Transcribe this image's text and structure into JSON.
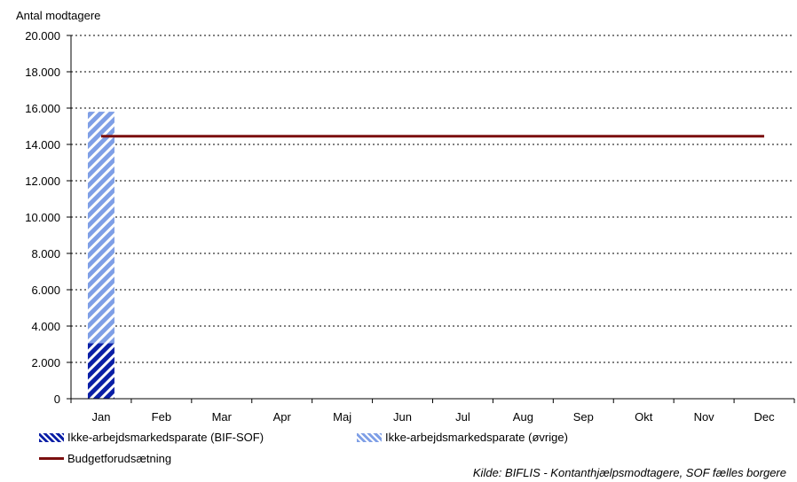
{
  "chart_data": {
    "type": "bar",
    "stacked": true,
    "ylabel": "Antal modtagere",
    "ylim": [
      0,
      20000
    ],
    "ytick_step": 2000,
    "categories": [
      "Jan",
      "Feb",
      "Mar",
      "Apr",
      "Maj",
      "Jun",
      "Jul",
      "Aug",
      "Sep",
      "Okt",
      "Nov",
      "Dec"
    ],
    "series": [
      {
        "name": "Ikke-arbejdsmarkedsparate (BIF-SOF)",
        "color": "#0b1fa6",
        "values": [
          3050,
          null,
          null,
          null,
          null,
          null,
          null,
          null,
          null,
          null,
          null,
          null
        ]
      },
      {
        "name": "Ikke-arbejdsmarkedsparate (øvrige)",
        "color": "#7f9fe6",
        "values": [
          12750,
          null,
          null,
          null,
          null,
          null,
          null,
          null,
          null,
          null,
          null,
          null
        ]
      }
    ],
    "line": {
      "name": "Budgetforudsætning",
      "color": "#7b0f0f",
      "values": [
        14450,
        14450,
        14450,
        14450,
        14450,
        14450,
        14450,
        14450,
        14450,
        14450,
        14450,
        14450
      ]
    },
    "grid": "horizontal-dashed",
    "legend_position": "bottom"
  },
  "source": "Kilde: BIFLIS - Kontanthjælpsmodtagere, SOF fælles borgere"
}
